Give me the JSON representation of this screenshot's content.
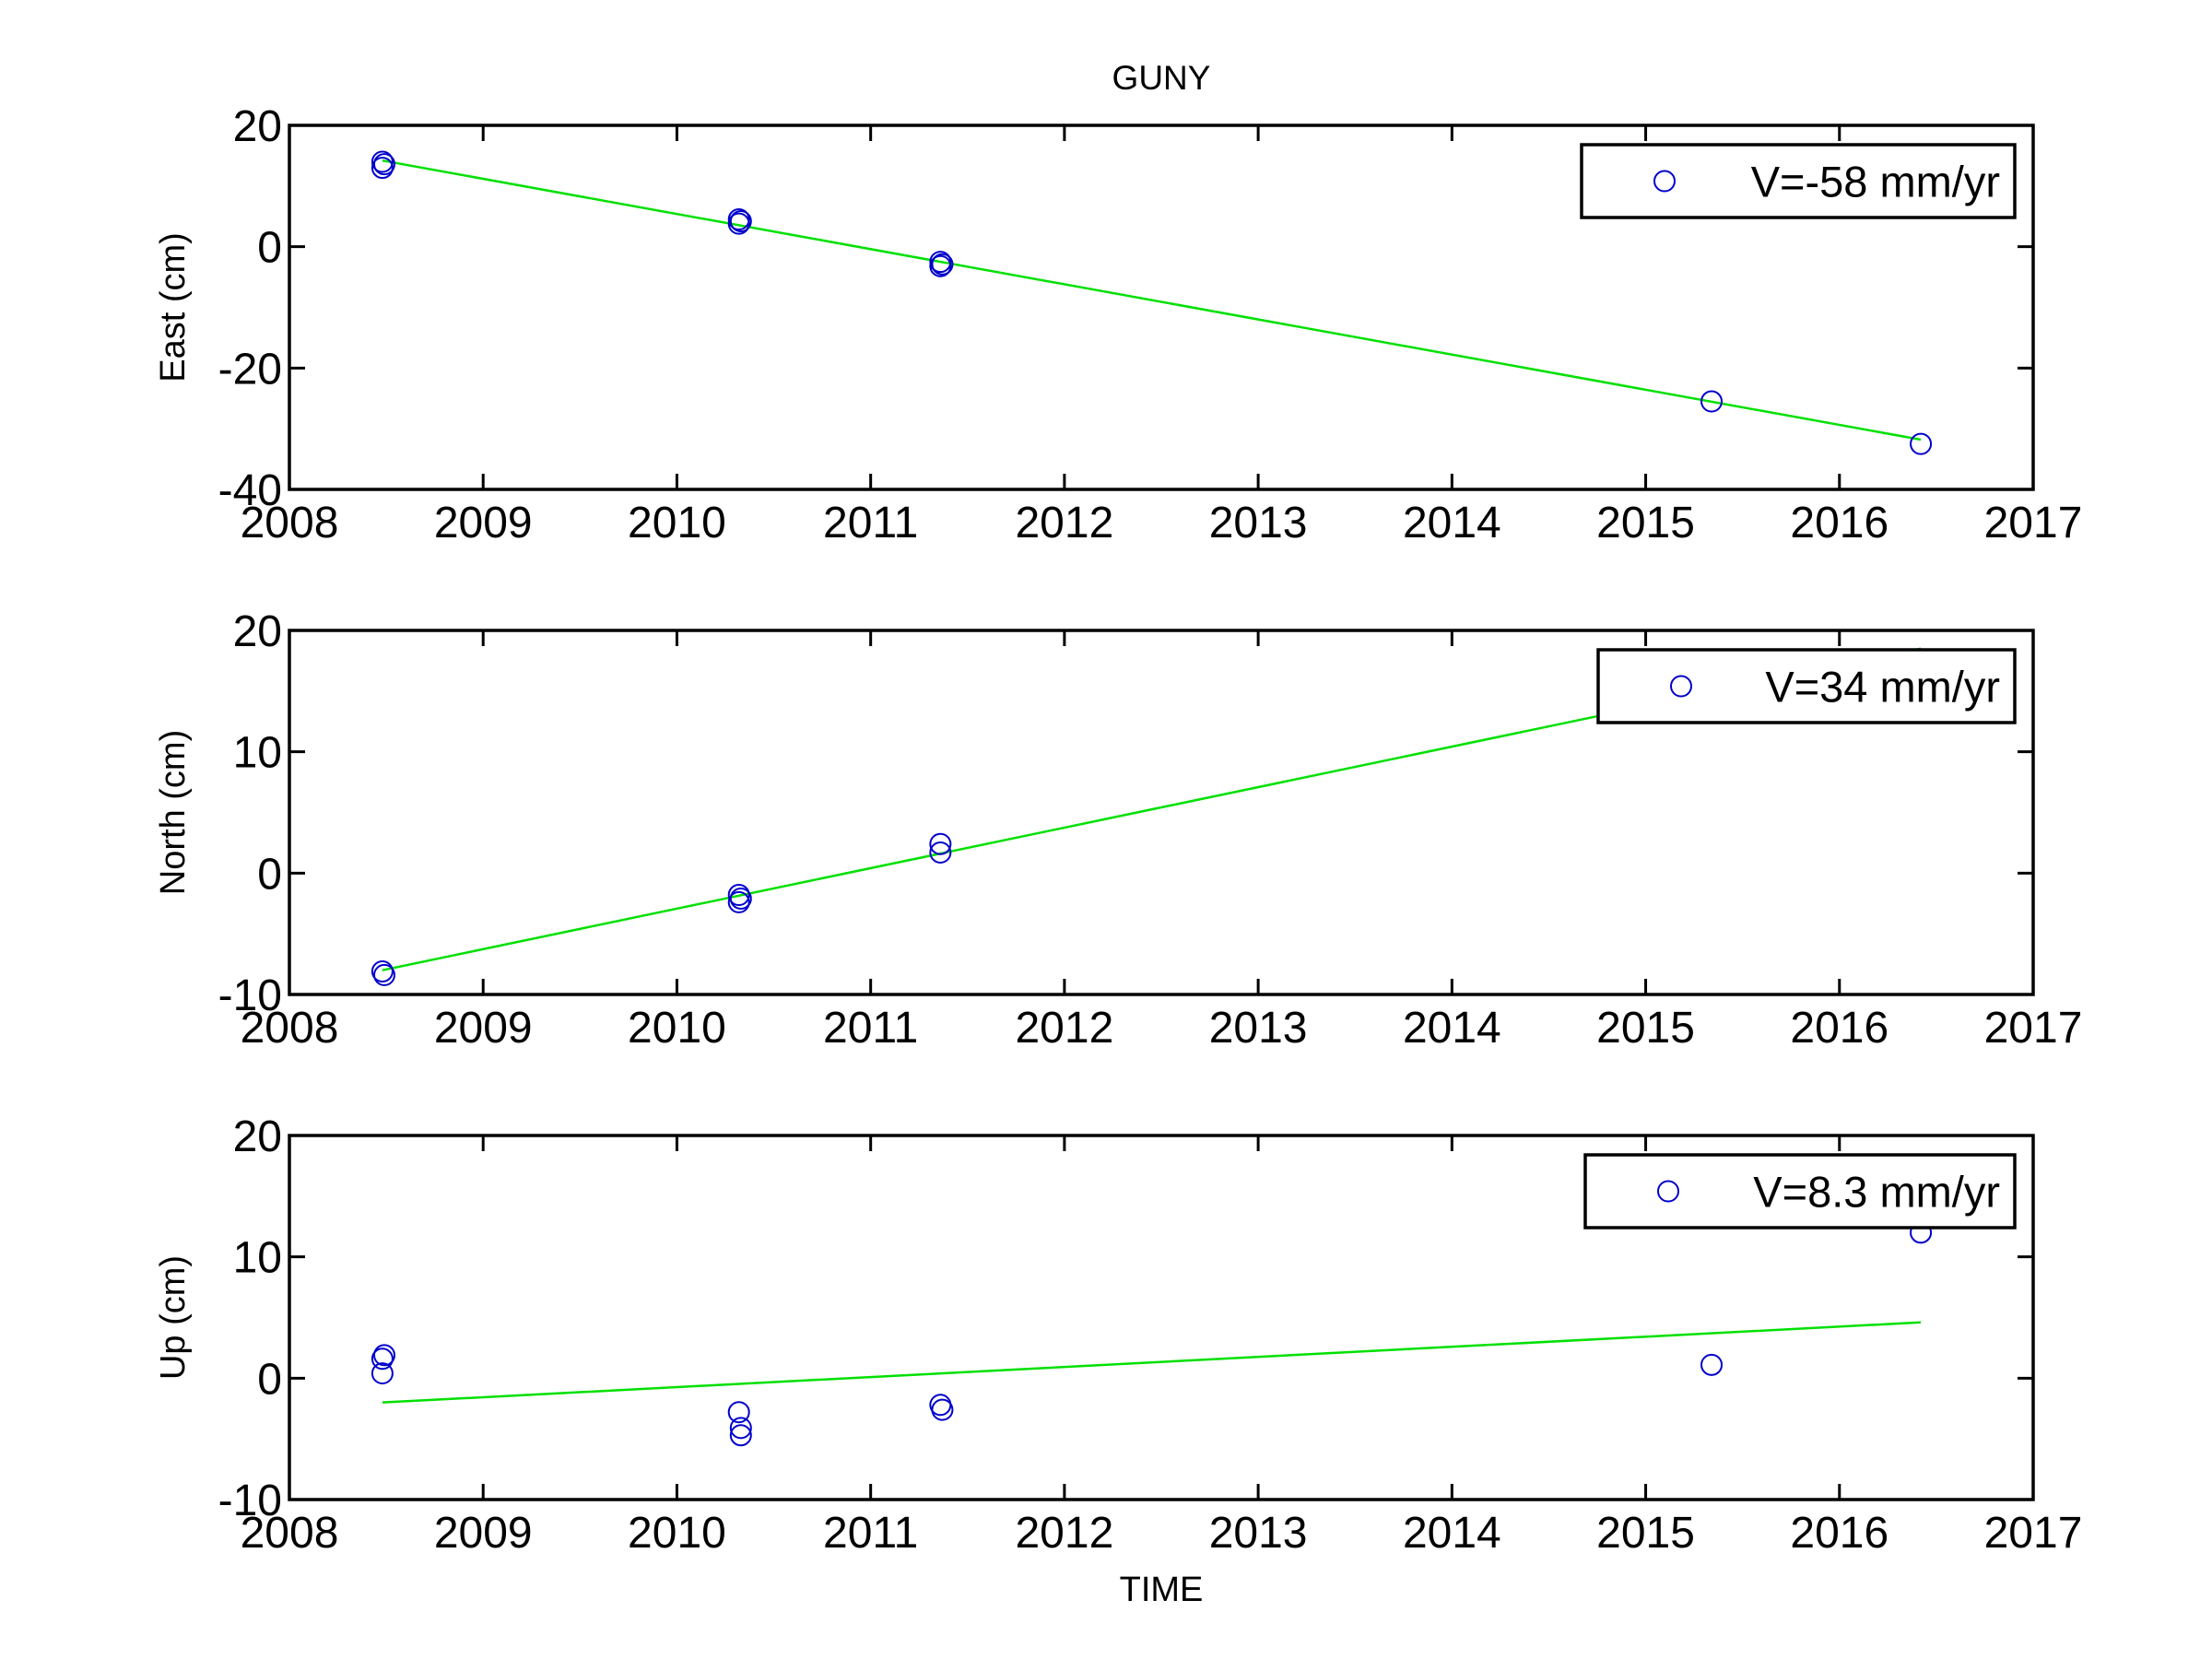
{
  "figure": {
    "title": "GUNY",
    "xlabel": "TIME"
  },
  "colors": {
    "marker": "#0000cc",
    "fit_line": "#00e000",
    "axes": "#000000",
    "background": "#ffffff"
  },
  "chart_data": [
    {
      "type": "scatter",
      "ylabel": "East (cm)",
      "xlim": [
        2008,
        2017
      ],
      "ylim": [
        -40,
        20
      ],
      "xticks": [
        2008,
        2009,
        2010,
        2011,
        2012,
        2013,
        2014,
        2015,
        2016,
        2017
      ],
      "yticks": [
        -40,
        -20,
        0,
        20
      ],
      "legend": {
        "label": "V=-58 mm/yr",
        "location": "top-right"
      },
      "series": [
        {
          "marker": "circle",
          "x": [
            2008.48,
            2008.48,
            2008.49,
            2010.32,
            2010.32,
            2010.33,
            2011.36,
            2011.36,
            2011.37,
            2015.34,
            2016.42
          ],
          "y": [
            14.0,
            13.0,
            13.6,
            4.5,
            3.8,
            4.2,
            -2.5,
            -3.2,
            -2.9,
            -25.5,
            -32.5
          ]
        }
      ],
      "fit": {
        "x": [
          2008.48,
          2016.42
        ],
        "y": [
          14.2,
          -31.8
        ]
      }
    },
    {
      "type": "scatter",
      "ylabel": "North (cm)",
      "xlim": [
        2008,
        2017
      ],
      "ylim": [
        -10,
        20
      ],
      "xticks": [
        2008,
        2009,
        2010,
        2011,
        2012,
        2013,
        2014,
        2015,
        2016,
        2017
      ],
      "yticks": [
        -10,
        0,
        10,
        20
      ],
      "legend": {
        "label": "V=34 mm/yr",
        "location": "top-right"
      },
      "series": [
        {
          "marker": "circle",
          "x": [
            2008.48,
            2008.49,
            2010.32,
            2010.32,
            2010.33,
            2011.36,
            2011.36
          ],
          "y": [
            -8.1,
            -8.4,
            -1.8,
            -2.4,
            -2.1,
            2.4,
            1.7
          ]
        }
      ],
      "fit": {
        "x": [
          2008.48,
          2016.42
        ],
        "y": [
          -8.0,
          18.5
        ]
      }
    },
    {
      "type": "scatter",
      "ylabel": "Up (cm)",
      "xlim": [
        2008,
        2017
      ],
      "ylim": [
        -10,
        20
      ],
      "xticks": [
        2008,
        2009,
        2010,
        2011,
        2012,
        2013,
        2014,
        2015,
        2016,
        2017
      ],
      "yticks": [
        -10,
        0,
        10,
        20
      ],
      "legend": {
        "label": "V=8.3 mm/yr",
        "location": "top-right"
      },
      "series": [
        {
          "marker": "circle",
          "x": [
            2008.48,
            2008.49,
            2008.48,
            2010.32,
            2010.33,
            2010.33,
            2011.36,
            2011.37,
            2015.34,
            2016.42
          ],
          "y": [
            1.6,
            1.9,
            0.4,
            -2.8,
            -4.1,
            -4.7,
            -2.2,
            -2.6,
            1.1,
            12.0
          ]
        }
      ],
      "fit": {
        "x": [
          2008.48,
          2016.42
        ],
        "y": [
          -2.0,
          4.6
        ]
      }
    }
  ]
}
